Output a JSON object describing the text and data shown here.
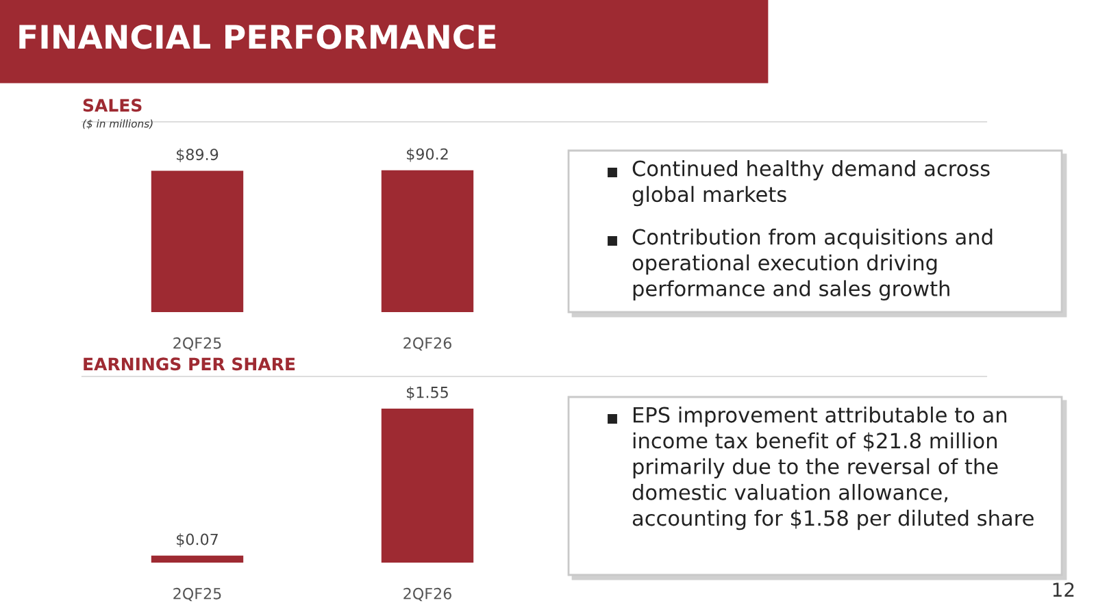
{
  "chart_data": [
    {
      "type": "other",
      "title": "FINANCIAL PERFORMANCE",
      "annotations": [
        "12"
      ]
    },
    {
      "type": "bar",
      "title": "SALES",
      "subtitle": "($ in millions)",
      "categories": [
        "2QF25",
        "2QF26"
      ],
      "values": [
        89.9,
        90.2
      ],
      "color": "#9e2a32",
      "value_labels": [
        "$89.9",
        "$90.2"
      ]
    },
    {
      "type": "other",
      "annotations": [
        "Continued healthy demand across\nglobal markets",
        "Contribution from acquisitions and\noperational execution driving\nperformance and sales growth"
      ]
    },
    {
      "type": "bar",
      "title": "EARNINGS PER SHARE",
      "categories": [
        "2QF25",
        "2QF26"
      ],
      "values": [
        0.07,
        1.55
      ],
      "color": "#9e2a32",
      "value_labels": [
        "$0.07",
        "$1.55"
      ]
    },
    {
      "type": "other",
      "annotations": [
        "EPS improvement attributable to an\nincome tax benefit of $21.8 million\nprimarily due to the reversal of the\ndomestic valuation allowance,\naccounting for $1.58 per diluted share"
      ]
    }
  ]
}
